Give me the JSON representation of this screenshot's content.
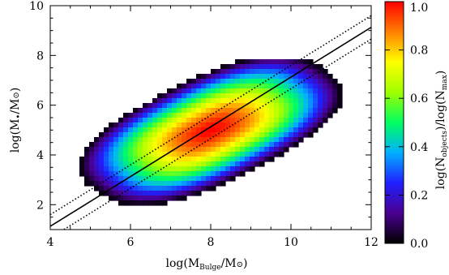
{
  "chart_data": {
    "type": "heatmap",
    "title": "",
    "xlabel": "log(M_Bulge/M_⊙)",
    "ylabel": "log(M_•/M_⊙)",
    "xlabel_parts": {
      "main": "log(M",
      "sub": "Bulge",
      "rest": "/M",
      "sym": "⊙",
      "close": ")"
    },
    "ylabel_parts": {
      "main": "log(M",
      "sub": "•",
      "rest": "/M",
      "sym": "⊙",
      "close": ")"
    },
    "xlim": [
      4,
      12
    ],
    "ylim": [
      1,
      10
    ],
    "xticks": [
      4,
      6,
      8,
      10,
      12
    ],
    "yticks": [
      2,
      4,
      6,
      8,
      10
    ],
    "xtick_labels": [
      "4",
      "6",
      "8",
      "10",
      "12"
    ],
    "ytick_labels": [
      "2",
      "4",
      "6",
      "8",
      "10"
    ],
    "grid": false,
    "density": {
      "description_values": "normalized log object counts",
      "peak": [
        8.0,
        5.0
      ],
      "axis_direction": [
        1.0,
        0.85
      ],
      "major_halfwidth": 2.6,
      "minor_halfwidth": 1.3,
      "support_limits": {
        "x": [
          4.5,
          11.8
        ],
        "y": [
          1.9,
          7.9
        ]
      }
    },
    "lines": [
      {
        "name": "",
        "style": "solid",
        "x": [
          4.0,
          12.0
        ],
        "y": [
          1.13,
          9.13
        ]
      },
      {
        "name": "",
        "style": "dotted",
        "x": [
          4.0,
          12.0
        ],
        "y": [
          1.6,
          9.6
        ]
      },
      {
        "name": "",
        "style": "dotted",
        "x": [
          4.0,
          12.0
        ],
        "y": [
          0.66,
          8.66
        ]
      }
    ],
    "colorbar": {
      "label": "log(N_objects)/log(N_max)",
      "label_parts": {
        "a": "log(N",
        "asub": "objects",
        "b": ")/log(N",
        "bsub": "max",
        "c": ")"
      },
      "range": [
        0.0,
        1.0
      ],
      "ticks": [
        0.0,
        0.2,
        0.4,
        0.6,
        0.8,
        1.0
      ],
      "tick_labels": [
        "0.0",
        "0.2",
        "0.4",
        "0.6",
        "0.8",
        "1.0"
      ],
      "colormap": [
        "#000000",
        "#4a0090",
        "#2020ff",
        "#00b0ff",
        "#00ff60",
        "#a0ff00",
        "#ffff00",
        "#ff8000",
        "#ff0000"
      ]
    }
  }
}
